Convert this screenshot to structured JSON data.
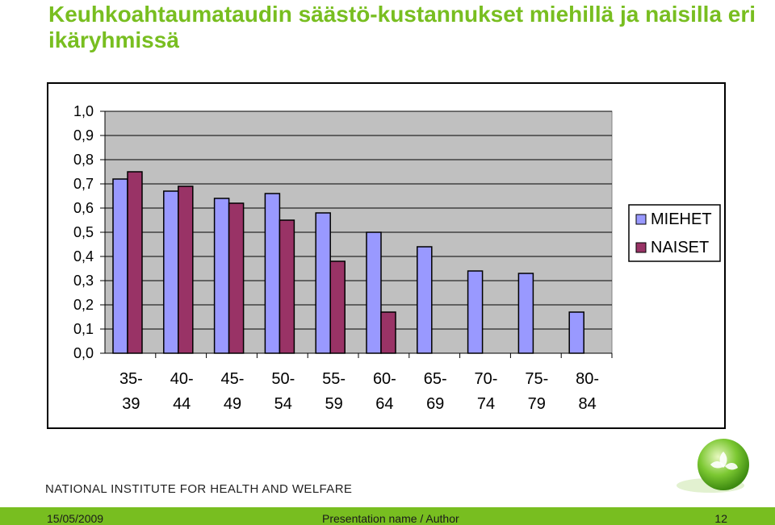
{
  "slide": {
    "title": "Keuhkoahtaumataudin säästö-kustannukset miehillä ja naisilla eri ikäryhmissä",
    "brand": "NATIONAL INSTITUTE FOR HEALTH AND WELFARE"
  },
  "footer": {
    "date": "15/05/2009",
    "presentation": "Presentation name / Author",
    "page": "12"
  },
  "chart_data": {
    "type": "bar",
    "categories": [
      "35-\n39",
      "40-\n44",
      "45-\n49",
      "50-\n54",
      "55-\n59",
      "60-\n64",
      "65-\n69",
      "70-\n74",
      "75-\n79",
      "80-\n84"
    ],
    "series": [
      {
        "name": "MIEHET",
        "color": "#9999ff",
        "values": [
          0.72,
          0.67,
          0.64,
          0.66,
          0.58,
          0.5,
          0.44,
          0.34,
          0.33,
          0.17
        ]
      },
      {
        "name": "NAISET",
        "color": "#993366",
        "values": [
          0.75,
          0.69,
          0.62,
          0.55,
          0.38,
          0.17,
          null,
          null,
          null,
          null
        ]
      }
    ],
    "yticks": [
      "0,0",
      "0,1",
      "0,2",
      "0,3",
      "0,4",
      "0,5",
      "0,6",
      "0,7",
      "0,8",
      "0,9",
      "1,0"
    ],
    "ylim": [
      0,
      1
    ],
    "grid": true,
    "plot_background": "#c0c0c0",
    "legend_position": "right",
    "title": "",
    "xlabel": "",
    "ylabel": ""
  }
}
